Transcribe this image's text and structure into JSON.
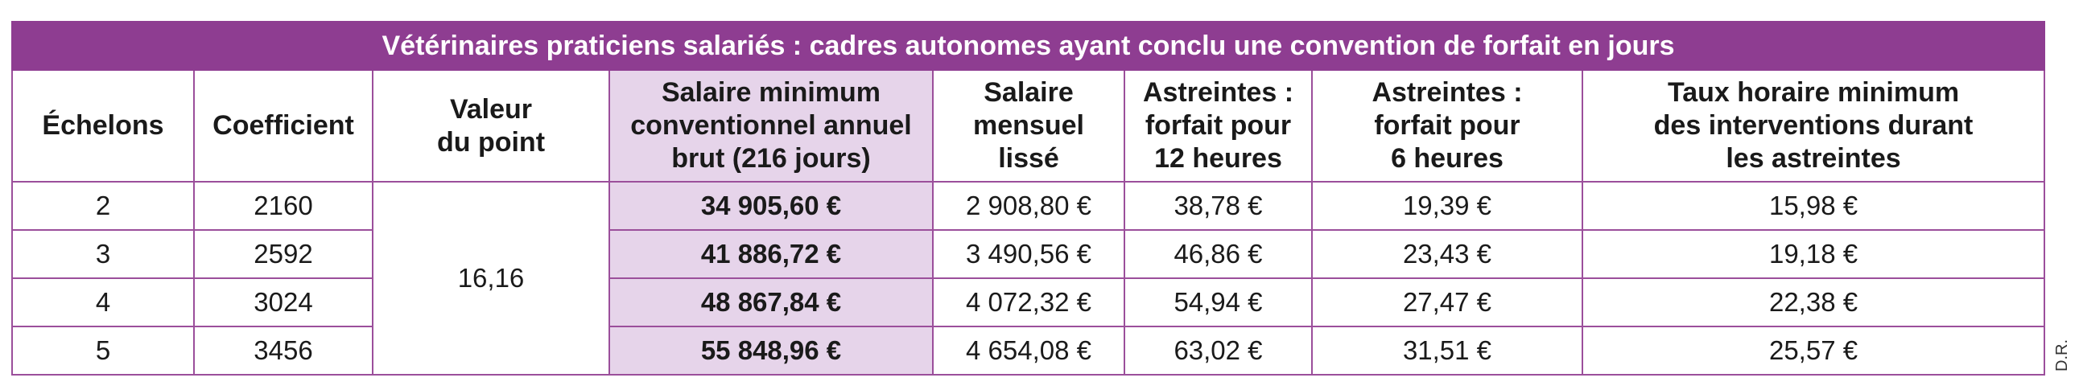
{
  "title": "Vétérinaires praticiens salariés : cadres autonomes ayant conclu une convention de forfait en jours",
  "headers": [
    "Échelons",
    "Coefficient",
    "Valeur\ndu point",
    "Salaire minimum\nconventionnel annuel\nbrut (216 jours)",
    "Salaire\nmensuel\nlissé",
    "Astreintes :\nforfait pour\n12 heures",
    "Astreintes :\nforfait pour\n6 heures",
    "Taux horaire minimum\ndes interventions durant\nles astreintes"
  ],
  "point_value": "16,16",
  "rows": [
    {
      "echelon": "2",
      "coefficient": "2160",
      "salaire_annuel": "34 905,60 €",
      "salaire_mensuel": "2 908,80 €",
      "astreinte_12h": "38,78 €",
      "astreinte_6h": "19,39 €",
      "taux_horaire": "15,98 €"
    },
    {
      "echelon": "3",
      "coefficient": "2592",
      "salaire_annuel": "41 886,72 €",
      "salaire_mensuel": "3 490,56 €",
      "astreinte_12h": "46,86 €",
      "astreinte_6h": "23,43 €",
      "taux_horaire": "19,18 €"
    },
    {
      "echelon": "4",
      "coefficient": "3024",
      "salaire_annuel": "48 867,84 €",
      "salaire_mensuel": "4 072,32 €",
      "astreinte_12h": "54,94 €",
      "astreinte_6h": "27,47 €",
      "taux_horaire": "22,38 €"
    },
    {
      "echelon": "5",
      "coefficient": "3456",
      "salaire_annuel": "55 848,96 €",
      "salaire_mensuel": "4 654,08 €",
      "astreinte_12h": "63,02 €",
      "astreinte_6h": "31,51 €",
      "taux_horaire": "25,57 €"
    }
  ],
  "credit": "D.R.",
  "colors": {
    "title_bg": "#8e3d91",
    "border": "#9b4f9b",
    "highlight": "#e6d4ea"
  }
}
